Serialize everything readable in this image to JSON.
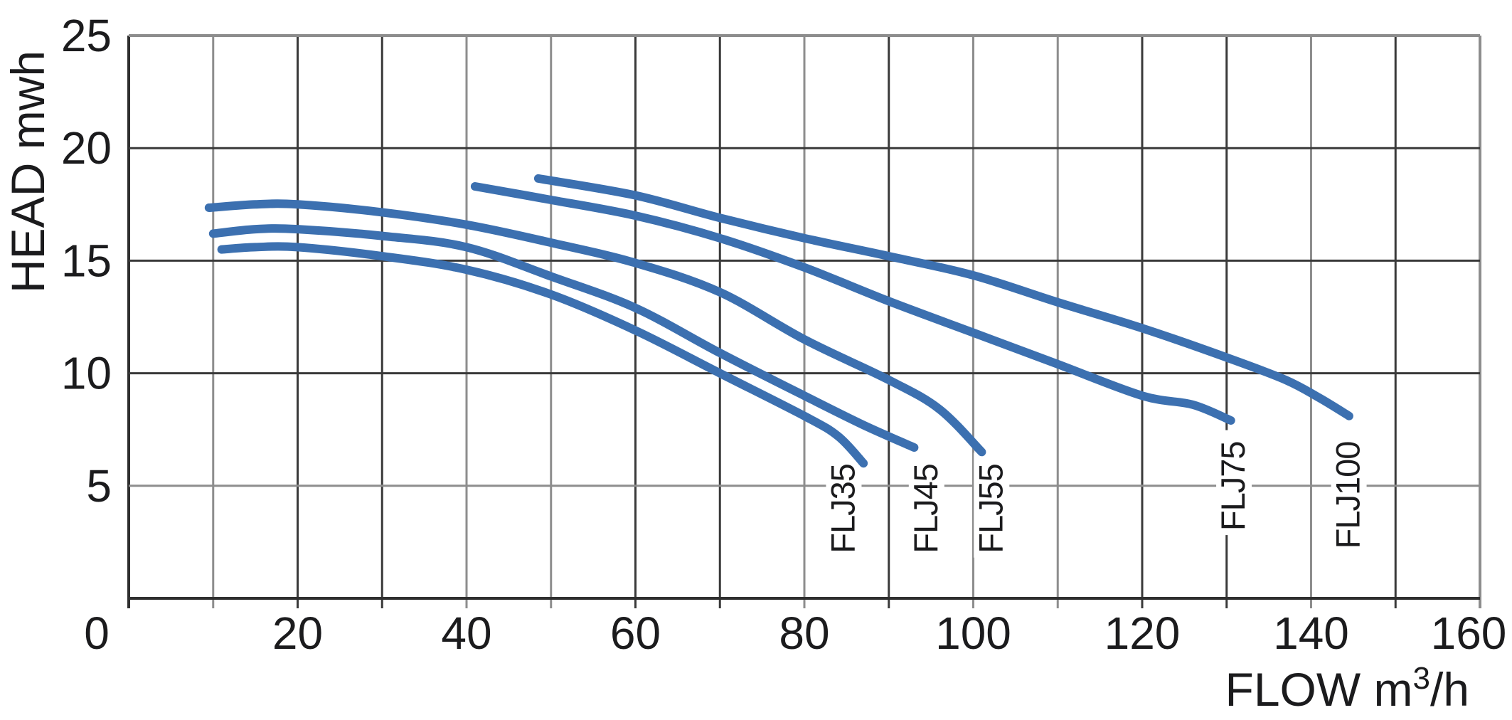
{
  "chart_data": {
    "type": "line",
    "title": "",
    "xlabel": "FLOW m³/h",
    "xlabel_parts": {
      "pre": "FLOW  m",
      "sup": "3",
      "post": "/h"
    },
    "ylabel": "HEAD mwh",
    "xlim": [
      0,
      160
    ],
    "ylim": [
      0,
      25
    ],
    "x_tick_labels": [
      0,
      20,
      40,
      60,
      80,
      100,
      120,
      140,
      160
    ],
    "y_tick_labels": [
      5,
      10,
      15,
      20,
      25
    ],
    "x_grid_step": 10,
    "y_grid_step": 5,
    "grid": "on",
    "legend_position": "labels-at-curve-ends",
    "series": [
      {
        "name": "FLJ35",
        "label_x": 84.5,
        "label_bottom_head": 2.0,
        "points": [
          [
            11,
            15.5
          ],
          [
            15,
            15.6
          ],
          [
            20,
            15.6
          ],
          [
            30,
            15.2
          ],
          [
            40,
            14.6
          ],
          [
            50,
            13.5
          ],
          [
            60,
            11.9
          ],
          [
            70,
            10.0
          ],
          [
            80,
            8.1
          ],
          [
            84,
            7.2
          ],
          [
            87,
            6.0
          ]
        ]
      },
      {
        "name": "FLJ45",
        "label_x": 94.3,
        "label_bottom_head": 2.0,
        "points": [
          [
            10,
            16.2
          ],
          [
            15,
            16.4
          ],
          [
            20,
            16.4
          ],
          [
            30,
            16.1
          ],
          [
            40,
            15.6
          ],
          [
            50,
            14.3
          ],
          [
            60,
            12.9
          ],
          [
            70,
            10.9
          ],
          [
            80,
            9.0
          ],
          [
            87,
            7.7
          ],
          [
            93,
            6.7
          ]
        ]
      },
      {
        "name": "FLJ55",
        "label_x": 102,
        "label_bottom_head": 2.0,
        "points": [
          [
            9.5,
            17.35
          ],
          [
            15,
            17.5
          ],
          [
            20,
            17.5
          ],
          [
            30,
            17.15
          ],
          [
            40,
            16.6
          ],
          [
            50,
            15.8
          ],
          [
            60,
            14.9
          ],
          [
            70,
            13.6
          ],
          [
            80,
            11.5
          ],
          [
            90,
            9.7
          ],
          [
            96,
            8.4
          ],
          [
            101,
            6.5
          ]
        ]
      },
      {
        "name": "FLJ75",
        "label_x": 130.7,
        "label_bottom_head": 3.0,
        "points": [
          [
            41,
            18.3
          ],
          [
            50,
            17.7
          ],
          [
            60,
            17.0
          ],
          [
            70,
            16.0
          ],
          [
            80,
            14.7
          ],
          [
            90,
            13.2
          ],
          [
            100,
            11.8
          ],
          [
            110,
            10.4
          ],
          [
            120,
            9.0
          ],
          [
            126,
            8.6
          ],
          [
            130.5,
            7.9
          ]
        ]
      },
      {
        "name": "FLJ100",
        "label_x": 144.3,
        "label_bottom_head": 2.2,
        "points": [
          [
            48.5,
            18.65
          ],
          [
            60,
            17.9
          ],
          [
            70,
            16.9
          ],
          [
            80,
            16.0
          ],
          [
            90,
            15.2
          ],
          [
            100,
            14.35
          ],
          [
            110,
            13.15
          ],
          [
            120,
            12.0
          ],
          [
            130,
            10.7
          ],
          [
            137,
            9.7
          ],
          [
            141,
            8.9
          ],
          [
            144.5,
            8.1
          ]
        ]
      }
    ]
  },
  "colors": {
    "curve": "#3c70b0",
    "grid_dark": "#3a3a3a",
    "grid_light": "#8d8d8d",
    "axis_dark": "#2f2f2f",
    "text": "#1b1b1d",
    "background": "#ffffff"
  },
  "grid_light_x": [
    10,
    40,
    50,
    80,
    100,
    110,
    140,
    160
  ],
  "grid_light_y": [
    5,
    25
  ]
}
